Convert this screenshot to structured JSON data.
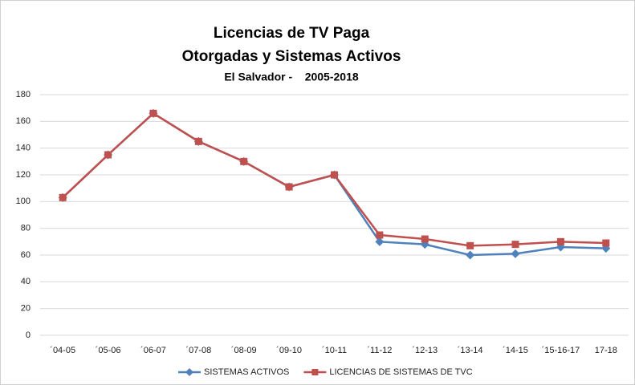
{
  "chart_data": {
    "type": "line",
    "title": [
      "Licencias de TV Paga",
      "Otorgadas y Sistemas Activos"
    ],
    "subtitle": "El Salvador -    2005-2018",
    "categories": [
      "´04-05",
      "´05-06",
      "´06-07",
      "´07-08",
      "´08-09",
      "´09-10",
      "´10-11",
      "´11-12",
      "´12-13",
      "´13-14",
      "´14-15",
      "´15-16-17",
      "17-18"
    ],
    "series": [
      {
        "name": "SISTEMAS ACTIVOS",
        "color": "#4f81bd",
        "marker": "diamond",
        "values": [
          103,
          135,
          166,
          145,
          130,
          111,
          120,
          70,
          68,
          60,
          61,
          66,
          65
        ]
      },
      {
        "name": "LICENCIAS DE SISTEMAS DE TVC",
        "color": "#c0504d",
        "marker": "square",
        "values": [
          103,
          135,
          166,
          145,
          130,
          111,
          120,
          75,
          72,
          67,
          68,
          70,
          69
        ]
      }
    ],
    "ylim": [
      0,
      180
    ],
    "yticks": [
      0,
      20,
      40,
      60,
      80,
      100,
      120,
      140,
      160,
      180
    ],
    "grid": true,
    "legend": "bottom"
  }
}
